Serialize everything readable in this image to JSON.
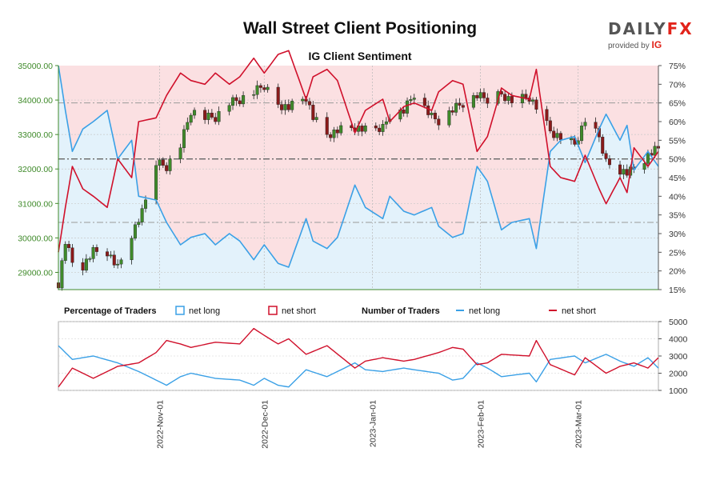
{
  "title": "Wall Street Client Positioning",
  "subtitle": "IG Client Sentiment",
  "brand": {
    "name_left": "DAILY",
    "name_right": "FX",
    "sub": "provided by",
    "sub_logo": "IG"
  },
  "colors": {
    "long": "#3aa0e6",
    "short": "#d0102b",
    "candle": "#3f8a2a",
    "candle_down": "#8a1a1a",
    "long_fill": "#e3f2fb",
    "short_fill": "#fbe0e2"
  },
  "legend": {
    "pct_title": "Percentage of Traders",
    "net_long": "net long",
    "net_short": "net short",
    "num_title": "Number of Traders"
  },
  "chart_data": [
    {
      "type": "candlestick",
      "title": "Wall Street",
      "ylim": [
        28500,
        35000
      ],
      "yticks": [
        "35000.00",
        "34000.00",
        "33000.00",
        "32000.00",
        "31000.00",
        "30000.00",
        "29000.00"
      ],
      "ytick_values": [
        35000,
        34000,
        33000,
        32000,
        31000,
        30000,
        29000
      ],
      "xlabels": [
        "2022-Nov-01",
        "2022-Dec-01",
        "2023-Jan-01",
        "2023-Feb-01",
        "2023-Mar-01"
      ],
      "x_range": [
        "2022-10-03",
        "2023-03-24"
      ],
      "close_anchors": [
        [
          "2022-10-03",
          28700
        ],
        [
          "2022-10-05",
          29900
        ],
        [
          "2022-10-07",
          29300
        ],
        [
          "2022-10-10",
          29200
        ],
        [
          "2022-10-13",
          29600
        ],
        [
          "2022-10-17",
          29600
        ],
        [
          "2022-10-20",
          29100
        ],
        [
          "2022-10-24",
          30100
        ],
        [
          "2022-10-27",
          30700
        ],
        [
          "2022-10-31",
          32200
        ],
        [
          "2022-11-03",
          32100
        ],
        [
          "2022-11-07",
          32700
        ],
        [
          "2022-11-10",
          33700
        ],
        [
          "2022-11-14",
          33500
        ],
        [
          "2022-11-17",
          33500
        ],
        [
          "2022-11-21",
          33900
        ],
        [
          "2022-11-24",
          34000
        ],
        [
          "2022-11-28",
          34200
        ],
        [
          "2022-12-01",
          34400
        ],
        [
          "2022-12-05",
          33900
        ],
        [
          "2022-12-08",
          33800
        ],
        [
          "2022-12-13",
          34100
        ],
        [
          "2022-12-15",
          33500
        ],
        [
          "2022-12-19",
          33000
        ],
        [
          "2022-12-22",
          33100
        ],
        [
          "2022-12-27",
          33200
        ],
        [
          "2022-12-30",
          33100
        ],
        [
          "2023-01-04",
          33200
        ],
        [
          "2023-01-06",
          33600
        ],
        [
          "2023-01-10",
          33700
        ],
        [
          "2023-01-13",
          34200
        ],
        [
          "2023-01-18",
          33500
        ],
        [
          "2023-01-20",
          33400
        ],
        [
          "2023-01-24",
          33700
        ],
        [
          "2023-01-27",
          33900
        ],
        [
          "2023-01-31",
          34100
        ],
        [
          "2023-02-03",
          34000
        ],
        [
          "2023-02-07",
          34200
        ],
        [
          "2023-02-10",
          34000
        ],
        [
          "2023-02-15",
          34100
        ],
        [
          "2023-02-17",
          33800
        ],
        [
          "2023-02-21",
          33100
        ],
        [
          "2023-02-24",
          32900
        ],
        [
          "2023-02-28",
          32700
        ],
        [
          "2023-03-03",
          33400
        ],
        [
          "2023-03-07",
          32900
        ],
        [
          "2023-03-09",
          32200
        ],
        [
          "2023-03-13",
          32000
        ],
        [
          "2023-03-15",
          31900
        ],
        [
          "2023-03-17",
          32000
        ],
        [
          "2023-03-21",
          32400
        ],
        [
          "2023-03-24",
          32600
        ]
      ],
      "right_axis": {
        "ticks": [
          "75%",
          "70%",
          "65%",
          "60%",
          "55%",
          "50%",
          "45%",
          "40%",
          "35%",
          "30%",
          "25%",
          "20%",
          "15%"
        ],
        "values": [
          75,
          70,
          65,
          60,
          55,
          50,
          45,
          40,
          35,
          30,
          25,
          20,
          15
        ],
        "ylim": [
          15,
          75
        ]
      },
      "reference_lines": [
        65,
        50,
        33
      ],
      "series": [
        {
          "name": "net long",
          "anchors": [
            [
              "2022-10-03",
              75
            ],
            [
              "2022-10-05",
              63
            ],
            [
              "2022-10-07",
              52
            ],
            [
              "2022-10-10",
              58
            ],
            [
              "2022-10-13",
              60
            ],
            [
              "2022-10-17",
              63
            ],
            [
              "2022-10-20",
              50
            ],
            [
              "2022-10-24",
              55
            ],
            [
              "2022-10-26",
              40
            ],
            [
              "2022-10-31",
              39
            ],
            [
              "2022-11-03",
              33
            ],
            [
              "2022-11-07",
              27
            ],
            [
              "2022-11-10",
              29
            ],
            [
              "2022-11-14",
              30
            ],
            [
              "2022-11-17",
              27
            ],
            [
              "2022-11-21",
              30
            ],
            [
              "2022-11-24",
              28
            ],
            [
              "2022-11-28",
              23
            ],
            [
              "2022-12-01",
              27
            ],
            [
              "2022-12-05",
              22
            ],
            [
              "2022-12-08",
              21
            ],
            [
              "2022-12-13",
              34
            ],
            [
              "2022-12-15",
              28
            ],
            [
              "2022-12-19",
              26
            ],
            [
              "2022-12-22",
              29
            ],
            [
              "2022-12-27",
              43
            ],
            [
              "2022-12-30",
              37
            ],
            [
              "2023-01-04",
              34
            ],
            [
              "2023-01-06",
              40
            ],
            [
              "2023-01-10",
              36
            ],
            [
              "2023-01-13",
              35
            ],
            [
              "2023-01-18",
              37
            ],
            [
              "2023-01-20",
              32
            ],
            [
              "2023-01-24",
              29
            ],
            [
              "2023-01-27",
              30
            ],
            [
              "2023-01-31",
              48
            ],
            [
              "2023-02-03",
              44
            ],
            [
              "2023-02-07",
              31
            ],
            [
              "2023-02-10",
              33
            ],
            [
              "2023-02-15",
              34
            ],
            [
              "2023-02-17",
              26
            ],
            [
              "2023-02-21",
              52
            ],
            [
              "2023-02-24",
              55
            ],
            [
              "2023-02-28",
              56
            ],
            [
              "2023-03-03",
              49
            ],
            [
              "2023-03-07",
              58
            ],
            [
              "2023-03-09",
              62
            ],
            [
              "2023-03-13",
              55
            ],
            [
              "2023-03-15",
              59
            ],
            [
              "2023-03-17",
              47
            ],
            [
              "2023-03-21",
              52
            ],
            [
              "2023-03-24",
              48
            ]
          ]
        },
        {
          "name": "net short",
          "anchors": [
            [
              "2022-10-03",
              25
            ],
            [
              "2022-10-05",
              37
            ],
            [
              "2022-10-07",
              48
            ],
            [
              "2022-10-10",
              42
            ],
            [
              "2022-10-13",
              40
            ],
            [
              "2022-10-17",
              37
            ],
            [
              "2022-10-20",
              50
            ],
            [
              "2022-10-24",
              45
            ],
            [
              "2022-10-26",
              60
            ],
            [
              "2022-10-31",
              61
            ],
            [
              "2022-11-03",
              67
            ],
            [
              "2022-11-07",
              73
            ],
            [
              "2022-11-10",
              71
            ],
            [
              "2022-11-14",
              70
            ],
            [
              "2022-11-17",
              73
            ],
            [
              "2022-11-21",
              70
            ],
            [
              "2022-11-24",
              72
            ],
            [
              "2022-11-28",
              77
            ],
            [
              "2022-12-01",
              73
            ],
            [
              "2022-12-05",
              78
            ],
            [
              "2022-12-08",
              79
            ],
            [
              "2022-12-13",
              66
            ],
            [
              "2022-12-15",
              72
            ],
            [
              "2022-12-19",
              74
            ],
            [
              "2022-12-22",
              71
            ],
            [
              "2022-12-27",
              57
            ],
            [
              "2022-12-30",
              63
            ],
            [
              "2023-01-04",
              66
            ],
            [
              "2023-01-06",
              60
            ],
            [
              "2023-01-10",
              64
            ],
            [
              "2023-01-13",
              65
            ],
            [
              "2023-01-18",
              63
            ],
            [
              "2023-01-20",
              68
            ],
            [
              "2023-01-24",
              71
            ],
            [
              "2023-01-27",
              70
            ],
            [
              "2023-01-31",
              52
            ],
            [
              "2023-02-03",
              56
            ],
            [
              "2023-02-07",
              69
            ],
            [
              "2023-02-10",
              67
            ],
            [
              "2023-02-15",
              66
            ],
            [
              "2023-02-17",
              74
            ],
            [
              "2023-02-21",
              48
            ],
            [
              "2023-02-24",
              45
            ],
            [
              "2023-02-28",
              44
            ],
            [
              "2023-03-03",
              51
            ],
            [
              "2023-03-07",
              42
            ],
            [
              "2023-03-09",
              38
            ],
            [
              "2023-03-13",
              45
            ],
            [
              "2023-03-15",
              41
            ],
            [
              "2023-03-17",
              53
            ],
            [
              "2023-03-21",
              48
            ],
            [
              "2023-03-24",
              52
            ]
          ]
        }
      ]
    },
    {
      "type": "line",
      "title": "Number of Traders",
      "ylim": [
        1000,
        5000
      ],
      "yticks": [
        "5000",
        "4000",
        "3000",
        "2000",
        "1000"
      ],
      "ytick_values": [
        5000,
        4000,
        3000,
        2000,
        1000
      ],
      "series": [
        {
          "name": "net long",
          "anchors": [
            [
              "2022-10-03",
              3600
            ],
            [
              "2022-10-07",
              2800
            ],
            [
              "2022-10-13",
              3000
            ],
            [
              "2022-10-20",
              2600
            ],
            [
              "2022-10-26",
              2100
            ],
            [
              "2022-10-31",
              1600
            ],
            [
              "2022-11-03",
              1300
            ],
            [
              "2022-11-07",
              1800
            ],
            [
              "2022-11-10",
              2000
            ],
            [
              "2022-11-17",
              1700
            ],
            [
              "2022-11-24",
              1600
            ],
            [
              "2022-11-28",
              1300
            ],
            [
              "2022-12-01",
              1700
            ],
            [
              "2022-12-05",
              1300
            ],
            [
              "2022-12-08",
              1200
            ],
            [
              "2022-12-13",
              2200
            ],
            [
              "2022-12-19",
              1800
            ],
            [
              "2022-12-27",
              2600
            ],
            [
              "2022-12-30",
              2200
            ],
            [
              "2023-01-04",
              2100
            ],
            [
              "2023-01-10",
              2300
            ],
            [
              "2023-01-13",
              2200
            ],
            [
              "2023-01-20",
              2000
            ],
            [
              "2023-01-24",
              1600
            ],
            [
              "2023-01-27",
              1700
            ],
            [
              "2023-01-31",
              2600
            ],
            [
              "2023-02-03",
              2300
            ],
            [
              "2023-02-07",
              1800
            ],
            [
              "2023-02-15",
              2000
            ],
            [
              "2023-02-17",
              1500
            ],
            [
              "2023-02-21",
              2800
            ],
            [
              "2023-02-28",
              3000
            ],
            [
              "2023-03-03",
              2600
            ],
            [
              "2023-03-09",
              3100
            ],
            [
              "2023-03-13",
              2700
            ],
            [
              "2023-03-17",
              2400
            ],
            [
              "2023-03-21",
              2900
            ],
            [
              "2023-03-24",
              2300
            ]
          ]
        },
        {
          "name": "net short",
          "anchors": [
            [
              "2022-10-03",
              1200
            ],
            [
              "2022-10-07",
              2300
            ],
            [
              "2022-10-13",
              1700
            ],
            [
              "2022-10-20",
              2400
            ],
            [
              "2022-10-26",
              2600
            ],
            [
              "2022-10-31",
              3200
            ],
            [
              "2022-11-03",
              3900
            ],
            [
              "2022-11-07",
              3700
            ],
            [
              "2022-11-10",
              3500
            ],
            [
              "2022-11-17",
              3800
            ],
            [
              "2022-11-24",
              3700
            ],
            [
              "2022-11-28",
              4600
            ],
            [
              "2022-12-01",
              4200
            ],
            [
              "2022-12-05",
              3700
            ],
            [
              "2022-12-08",
              4000
            ],
            [
              "2022-12-13",
              3100
            ],
            [
              "2022-12-19",
              3600
            ],
            [
              "2022-12-27",
              2300
            ],
            [
              "2022-12-30",
              2700
            ],
            [
              "2023-01-04",
              2900
            ],
            [
              "2023-01-10",
              2700
            ],
            [
              "2023-01-13",
              2800
            ],
            [
              "2023-01-20",
              3200
            ],
            [
              "2023-01-24",
              3500
            ],
            [
              "2023-01-27",
              3400
            ],
            [
              "2023-01-31",
              2500
            ],
            [
              "2023-02-03",
              2600
            ],
            [
              "2023-02-07",
              3100
            ],
            [
              "2023-02-15",
              3000
            ],
            [
              "2023-02-17",
              3900
            ],
            [
              "2023-02-21",
              2500
            ],
            [
              "2023-02-28",
              1900
            ],
            [
              "2023-03-03",
              2900
            ],
            [
              "2023-03-09",
              2000
            ],
            [
              "2023-03-13",
              2400
            ],
            [
              "2023-03-17",
              2600
            ],
            [
              "2023-03-21",
              2300
            ],
            [
              "2023-03-24",
              2900
            ]
          ]
        }
      ]
    }
  ]
}
